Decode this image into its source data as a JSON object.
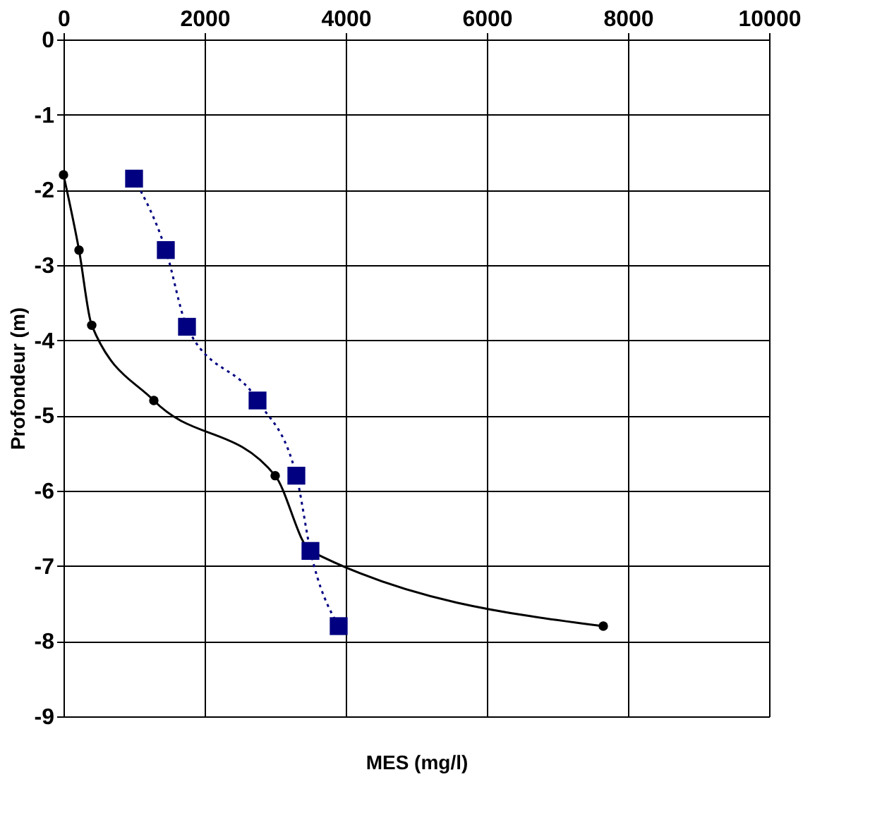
{
  "chart_data": {
    "type": "line",
    "xlabel": "MES (mg/l)",
    "ylabel": "Profondeur (m)",
    "xlim": [
      0,
      10000
    ],
    "xticks": [
      0,
      2000,
      4000,
      6000,
      8000,
      10000
    ],
    "ylim": [
      -9,
      0
    ],
    "yticks": [
      -9,
      -8,
      -7,
      -6,
      -5,
      -4,
      -3,
      -2,
      -1,
      0
    ],
    "grid": true,
    "legend": false,
    "series": [
      {
        "color": "#000000",
        "marker": "circle",
        "line_style": "solid",
        "x": [
          0,
          220,
          400,
          1280,
          3000,
          3500,
          7650
        ],
        "values": [
          -1.8,
          -2.8,
          -3.8,
          -4.8,
          -5.8,
          -6.8,
          -7.8
        ]
      },
      {
        "color": "#000080",
        "marker": "square",
        "line_style": "dotted",
        "x": [
          1000,
          1450,
          1750,
          2750,
          3300,
          3500,
          3900
        ],
        "values": [
          -1.85,
          -2.8,
          -3.82,
          -4.8,
          -5.8,
          -6.8,
          -7.8
        ]
      }
    ]
  }
}
